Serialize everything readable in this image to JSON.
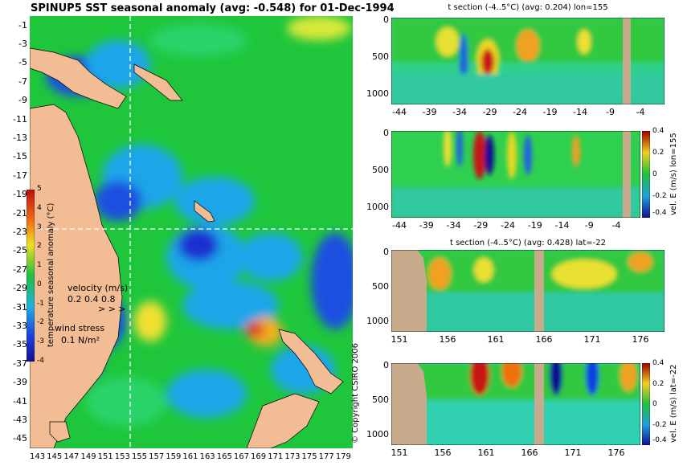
{
  "map": {
    "title": "SPINUP5 SST seasonal anomaly (avg: -0.548) for 01-Dec-1994",
    "lat_labels": [
      "-1",
      "-3",
      "-5",
      "-7",
      "-9",
      "-11",
      "-13",
      "-15",
      "-17",
      "-19",
      "-21",
      "-23",
      "-25",
      "-27",
      "-29",
      "-31",
      "-33",
      "-35",
      "-37",
      "-39",
      "-41",
      "-43",
      "-45"
    ],
    "lon_labels": [
      "143",
      "145",
      "147",
      "149",
      "151",
      "153",
      "155",
      "157",
      "159",
      "161",
      "163",
      "165",
      "167",
      "169",
      "171",
      "173",
      "175",
      "177",
      "179"
    ],
    "colorbar": {
      "label": "temperature seasonal anomaly (°C)",
      "ticks": [
        "5",
        "4",
        "3",
        "2",
        "1",
        "0",
        "-1",
        "-2",
        "-3",
        "-4"
      ]
    },
    "velocity_legend": {
      "title": "velocity (m/s)",
      "values": "0.2 0.4 0.8"
    },
    "wind_legend": {
      "title": "wind stress",
      "value": "0.1 N/m²"
    },
    "copyright": "© Copyright CSIRO 2006"
  },
  "panels": [
    {
      "title": "t section (-4..5°C) (avg: 0.204) lon=155",
      "x_ticks": [
        "-44",
        "-39",
        "-34",
        "-29",
        "-24",
        "-19",
        "-14",
        "-9",
        "-4"
      ],
      "y_ticks": [
        "0",
        "500",
        "1000"
      ]
    },
    {
      "title": "",
      "x_ticks": [
        "-44",
        "-39",
        "-34",
        "-29",
        "-24",
        "-19",
        "-14",
        "-9",
        "-4"
      ],
      "y_ticks": [
        "0",
        "500",
        "1000"
      ],
      "colorbar_label": "vel. E (m/s) lon=155",
      "colorbar_ticks": [
        "0.4",
        "0.2",
        "0",
        "-0.2",
        "-0.4"
      ]
    },
    {
      "title": "t section (-4..5°C) (avg: 0.428) lat=-22",
      "x_ticks": [
        "151",
        "156",
        "161",
        "166",
        "171",
        "176"
      ],
      "y_ticks": [
        "0",
        "500",
        "1000"
      ]
    },
    {
      "title": "",
      "x_ticks": [
        "151",
        "156",
        "161",
        "166",
        "171",
        "176"
      ],
      "y_ticks": [
        "0",
        "500",
        "1000"
      ],
      "colorbar_label": "vel. E (m/s) lat=-22",
      "colorbar_ticks": [
        "0.4",
        "0.2",
        "0",
        "-0.2",
        "-0.4"
      ]
    }
  ],
  "colors": {
    "ocean": "#21c43f",
    "land": "#f2bc94",
    "section_land": "#c8aa8c"
  }
}
